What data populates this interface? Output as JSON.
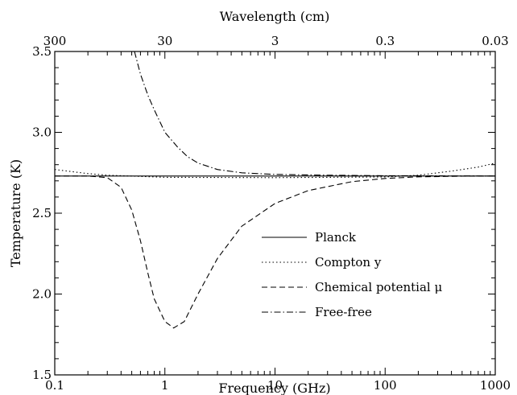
{
  "chart_data": {
    "type": "line",
    "xlabel": "Frequency (GHz)",
    "ylabel": "Temperature (K)",
    "x2label": "Wavelength (cm)",
    "xscale": "log",
    "xlim": [
      0.1,
      1000
    ],
    "ylim": [
      1.5,
      3.5
    ],
    "x_ticks": [
      0.1,
      1,
      10,
      100,
      1000
    ],
    "x_tick_labels": [
      "0.1",
      "1",
      "10",
      "100",
      "1000"
    ],
    "y_ticks": [
      1.5,
      2.0,
      2.5,
      3.0,
      3.5
    ],
    "y_tick_labels": [
      "1.5",
      "2.0",
      "2.5",
      "3.0",
      "3.5"
    ],
    "x2_ticks_cm": [
      300,
      30,
      3,
      0.3,
      0.03
    ],
    "x2_tick_labels": [
      "300",
      "30",
      "3",
      "0.3",
      "0.03"
    ],
    "legend_position": "lower-right",
    "grid": false,
    "series": [
      {
        "name": "Planck",
        "style": "solid",
        "x": [
          0.1,
          1000
        ],
        "y": [
          2.73,
          2.73
        ]
      },
      {
        "name": "Compton y",
        "style": "dotted",
        "x": [
          0.1,
          0.2,
          0.3,
          1,
          10,
          100,
          200,
          400,
          700,
          1000
        ],
        "y": [
          2.77,
          2.745,
          2.735,
          2.722,
          2.72,
          2.724,
          2.735,
          2.76,
          2.785,
          2.81
        ]
      },
      {
        "name": "Chemical potential μ",
        "style": "dashed",
        "x": [
          0.1,
          0.2,
          0.3,
          0.4,
          0.5,
          0.6,
          0.7,
          0.8,
          1.0,
          1.2,
          1.5,
          2,
          3,
          5,
          10,
          20,
          50,
          100,
          200,
          500,
          1000
        ],
        "y": [
          2.73,
          2.73,
          2.72,
          2.66,
          2.52,
          2.33,
          2.13,
          1.97,
          1.83,
          1.79,
          1.83,
          2.0,
          2.22,
          2.42,
          2.56,
          2.64,
          2.695,
          2.715,
          2.725,
          2.729,
          2.73
        ]
      },
      {
        "name": "Free-free",
        "style": "dashdot",
        "x": [
          0.53,
          0.6,
          0.7,
          0.8,
          1.0,
          1.3,
          1.6,
          2,
          3,
          5,
          10,
          30,
          100,
          1000
        ],
        "y": [
          3.5,
          3.36,
          3.23,
          3.14,
          3.0,
          2.91,
          2.85,
          2.81,
          2.77,
          2.75,
          2.74,
          2.735,
          2.732,
          2.73
        ]
      }
    ]
  }
}
